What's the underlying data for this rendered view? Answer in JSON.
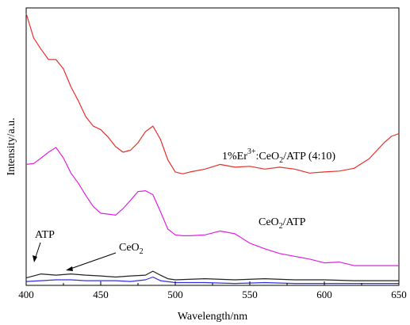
{
  "chart_data": {
    "type": "line",
    "xlabel": "Wavelength/nm",
    "ylabel": "Intensity/a.u.",
    "xlim": [
      400,
      650
    ],
    "ylim": [
      0,
      100
    ],
    "y_ticks_shown": false,
    "xticks": [
      400,
      450,
      500,
      550,
      600,
      650
    ],
    "xtick_labels": [
      "400",
      "450",
      "500",
      "550",
      "600",
      "650"
    ],
    "grid": false,
    "legend": "none",
    "series": [
      {
        "color": "#e8302a",
        "x": [
          400,
          405,
          410,
          415,
          420,
          425,
          430,
          435,
          440,
          445,
          450,
          455,
          460,
          465,
          470,
          475,
          480,
          485,
          490,
          495,
          500,
          505,
          510,
          520,
          530,
          540,
          550,
          560,
          570,
          580,
          590,
          600,
          610,
          620,
          630,
          640,
          645,
          650
        ],
        "values": [
          98.0,
          89.2,
          85.1,
          81.4,
          81.4,
          78.0,
          71.6,
          66.5,
          60.8,
          57.4,
          56.1,
          53.4,
          50.0,
          48.0,
          48.7,
          51.4,
          55.4,
          57.4,
          52.7,
          45.3,
          40.9,
          40.2,
          40.9,
          41.9,
          43.6,
          42.6,
          42.9,
          41.9,
          42.6,
          41.9,
          40.5,
          40.9,
          41.2,
          42.2,
          45.6,
          51.4,
          53.7,
          54.7
        ]
      },
      {
        "color": "#e020e0",
        "x": [
          400,
          405,
          410,
          415,
          420,
          425,
          430,
          435,
          440,
          445,
          450,
          455,
          460,
          465,
          470,
          475,
          480,
          485,
          490,
          495,
          500,
          505,
          510,
          520,
          530,
          540,
          550,
          560,
          570,
          580,
          590,
          600,
          610,
          620,
          630,
          640,
          650
        ],
        "values": [
          43.6,
          43.9,
          45.9,
          48.0,
          49.7,
          45.9,
          40.5,
          36.8,
          32.4,
          28.4,
          26.0,
          25.7,
          25.3,
          27.7,
          30.7,
          33.8,
          34.1,
          32.7,
          26.7,
          20.3,
          18.2,
          17.9,
          17.9,
          18.2,
          19.6,
          18.6,
          15.2,
          13.2,
          11.5,
          10.5,
          9.5,
          8.1,
          8.4,
          7.1,
          7.1,
          7.1,
          7.1
        ]
      },
      {
        "color": "#222222",
        "x": [
          400,
          405,
          410,
          420,
          430,
          440,
          450,
          460,
          470,
          480,
          485,
          490,
          495,
          500,
          520,
          540,
          560,
          580,
          600,
          620,
          650
        ],
        "values": [
          2.7,
          3.4,
          4.1,
          3.7,
          4.1,
          3.7,
          3.4,
          3.0,
          3.4,
          3.7,
          5.1,
          3.7,
          2.4,
          2.0,
          2.4,
          2.0,
          2.4,
          2.0,
          2.0,
          1.7,
          1.7
        ]
      },
      {
        "color": "#3030e0",
        "x": [
          400,
          410,
          420,
          430,
          440,
          450,
          460,
          470,
          480,
          485,
          490,
          500,
          520,
          540,
          560,
          580,
          600,
          620,
          650
        ],
        "values": [
          1.4,
          1.7,
          2.0,
          2.0,
          1.7,
          1.7,
          1.7,
          1.4,
          2.0,
          3.0,
          1.7,
          1.0,
          1.0,
          0.7,
          1.0,
          0.7,
          0.7,
          0.7,
          0.7
        ]
      }
    ],
    "annotations": [
      {
        "label_main": "1%Er",
        "label_sup": "3+",
        "label_mid": ":CeO",
        "label_sub": "2",
        "label_tail": "/ATP (4:10)"
      },
      {
        "label": "CeO2/ATP",
        "label_main": "CeO",
        "label_sub": "2",
        "label_tail": "/ATP"
      },
      {
        "label": "ATP"
      },
      {
        "label": "CeO2",
        "label_main": "CeO",
        "label_sub": "2"
      }
    ]
  }
}
